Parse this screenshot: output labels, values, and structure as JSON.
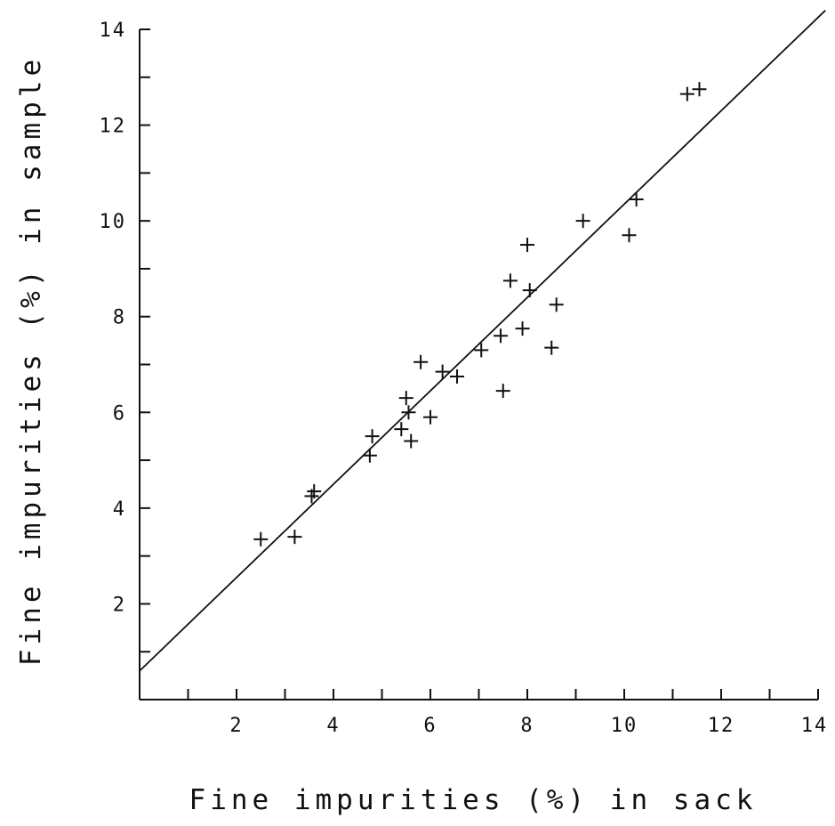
{
  "chart_data": {
    "type": "scatter",
    "title": "",
    "xlabel": "Fine impurities (%) in sack",
    "ylabel": "Fine impurities (%) in sample",
    "xlim": [
      0,
      14
    ],
    "ylim": [
      0,
      14
    ],
    "x_ticks": [
      2,
      4,
      6,
      8,
      10,
      12,
      14
    ],
    "y_ticks": [
      2,
      4,
      6,
      8,
      10,
      12,
      14
    ],
    "x_tick_labels": [
      "2",
      "4",
      "6",
      "8",
      "10",
      "12",
      "14"
    ],
    "y_tick_labels": [
      "2",
      "4",
      "6",
      "8",
      "10",
      "12",
      "14"
    ],
    "grid": false,
    "legend": "none",
    "marker": "+",
    "points": [
      {
        "x": 2.5,
        "y": 3.35
      },
      {
        "x": 3.2,
        "y": 3.4
      },
      {
        "x": 3.55,
        "y": 4.25
      },
      {
        "x": 3.6,
        "y": 4.35
      },
      {
        "x": 4.75,
        "y": 5.1
      },
      {
        "x": 4.8,
        "y": 5.5
      },
      {
        "x": 5.4,
        "y": 5.65
      },
      {
        "x": 5.5,
        "y": 6.3
      },
      {
        "x": 5.55,
        "y": 6.0
      },
      {
        "x": 5.6,
        "y": 5.4
      },
      {
        "x": 5.8,
        "y": 7.05
      },
      {
        "x": 6.0,
        "y": 5.9
      },
      {
        "x": 6.25,
        "y": 6.85
      },
      {
        "x": 6.55,
        "y": 6.75
      },
      {
        "x": 7.05,
        "y": 7.3
      },
      {
        "x": 7.45,
        "y": 7.6
      },
      {
        "x": 7.5,
        "y": 6.45
      },
      {
        "x": 7.65,
        "y": 8.75
      },
      {
        "x": 7.9,
        "y": 7.75
      },
      {
        "x": 8.0,
        "y": 9.5
      },
      {
        "x": 8.05,
        "y": 8.55
      },
      {
        "x": 8.5,
        "y": 7.35
      },
      {
        "x": 8.6,
        "y": 8.25
      },
      {
        "x": 9.15,
        "y": 10.0
      },
      {
        "x": 10.1,
        "y": 9.7
      },
      {
        "x": 10.25,
        "y": 10.45
      },
      {
        "x": 11.3,
        "y": 12.65
      },
      {
        "x": 11.55,
        "y": 12.75
      }
    ],
    "fit_line": {
      "intercept": 0.6,
      "slope": 0.975,
      "x_range": [
        0,
        14.15
      ]
    }
  }
}
